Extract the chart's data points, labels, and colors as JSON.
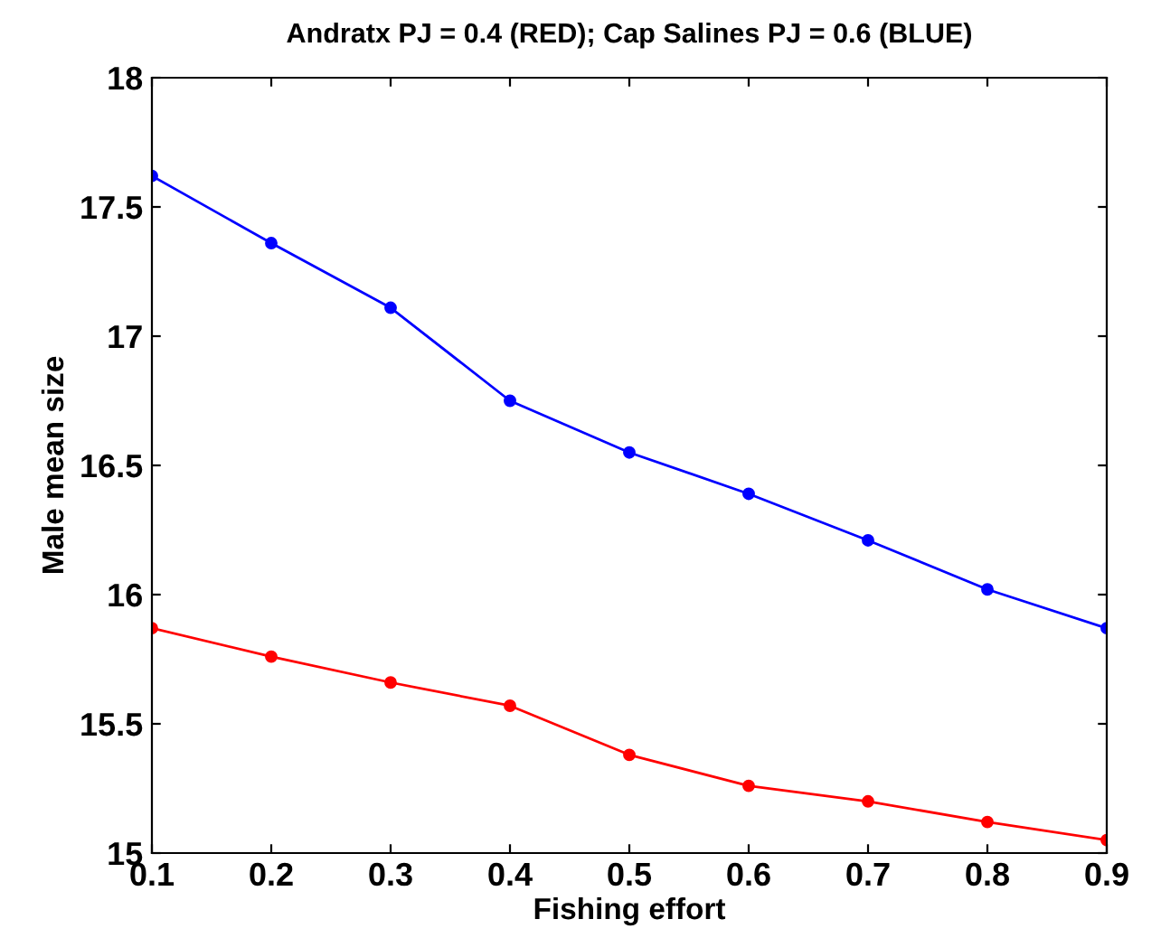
{
  "chart_data": {
    "type": "line",
    "title": "Andratx PJ = 0.4 (RED); Cap Salines PJ = 0.6 (BLUE)",
    "xlabel": "Fishing effort",
    "ylabel": "Male mean size",
    "x": [
      0.1,
      0.2,
      0.3,
      0.4,
      0.5,
      0.6,
      0.7,
      0.8,
      0.9
    ],
    "series": [
      {
        "color": "#0000ff",
        "values": [
          17.62,
          17.36,
          17.11,
          16.75,
          16.55,
          16.39,
          16.21,
          16.02,
          15.87
        ]
      },
      {
        "color": "#ff0000",
        "values": [
          15.87,
          15.76,
          15.66,
          15.57,
          15.38,
          15.26,
          15.2,
          15.12,
          15.05
        ]
      }
    ],
    "xlim": [
      0.1,
      0.9
    ],
    "xticks": [
      0.1,
      0.2,
      0.3,
      0.4,
      0.5,
      0.6,
      0.7,
      0.8,
      0.9
    ],
    "ylim": [
      15,
      18
    ],
    "yticks": [
      15,
      15.5,
      16,
      16.5,
      17,
      17.5,
      18
    ],
    "grid": false,
    "legend": false,
    "marker": "circle",
    "line_style": "solid"
  }
}
